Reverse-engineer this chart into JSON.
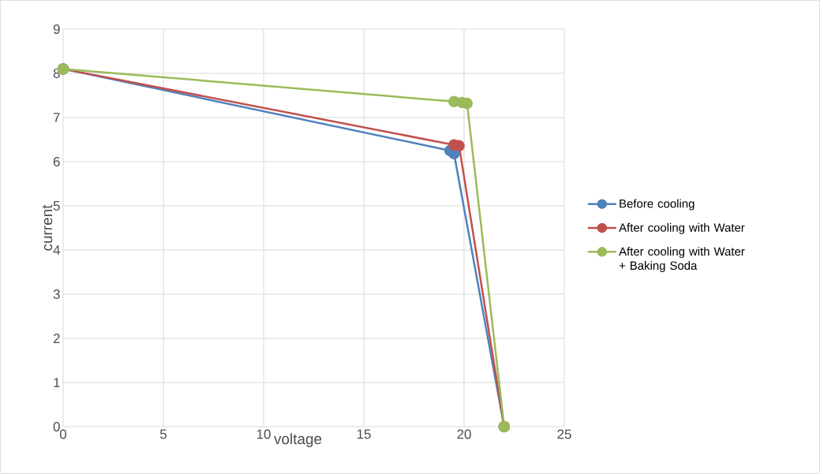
{
  "chart_data": {
    "type": "line",
    "xlabel": "voltage",
    "ylabel": "current",
    "xlim": [
      0,
      25
    ],
    "ylim": [
      0,
      9
    ],
    "xticks": [
      0,
      5,
      10,
      15,
      20,
      25
    ],
    "yticks": [
      0,
      1,
      2,
      3,
      4,
      5,
      6,
      7,
      8,
      9
    ],
    "grid": true,
    "legend": "right",
    "marker": "circle",
    "line_style": "solid",
    "series": [
      {
        "name": "Before cooling",
        "color": "#4f81bd",
        "x": [
          0,
          19.3,
          19.5,
          22
        ],
        "values": [
          8.1,
          6.25,
          6.18,
          0
        ]
      },
      {
        "name": "After cooling with Water",
        "color": "#c0504d",
        "x": [
          0,
          19.5,
          19.75,
          22
        ],
        "values": [
          8.1,
          6.38,
          6.36,
          0
        ]
      },
      {
        "name": "After cooling with Water + Baking Soda",
        "color": "#9bbb59",
        "x": [
          0,
          19.5,
          19.9,
          20.15,
          22
        ],
        "values": [
          8.1,
          7.36,
          7.34,
          7.32,
          0
        ]
      }
    ]
  }
}
